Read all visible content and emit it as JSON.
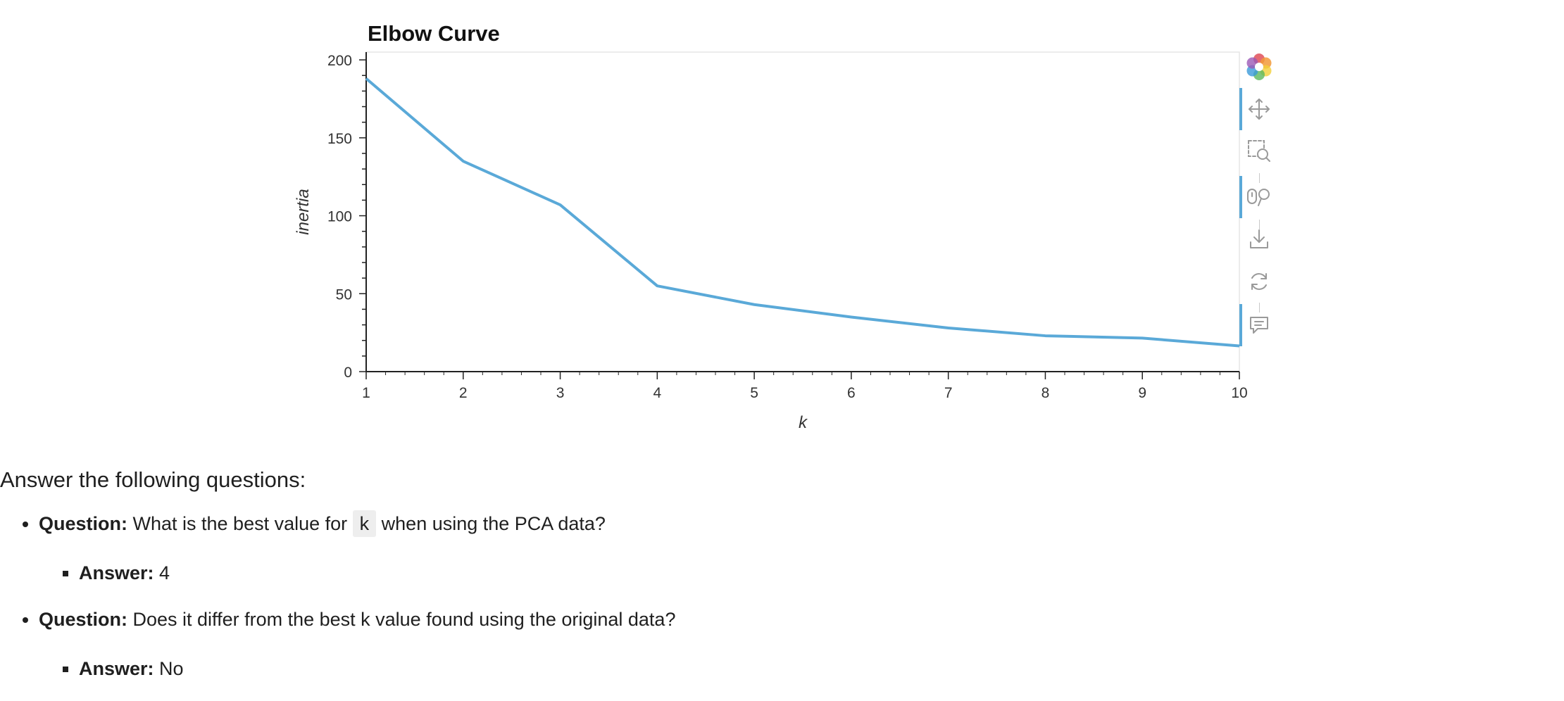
{
  "chart_data": {
    "type": "line",
    "title": "Elbow Curve",
    "xlabel": "k",
    "ylabel": "inertia",
    "x": [
      1,
      2,
      3,
      4,
      5,
      6,
      7,
      8,
      9,
      10
    ],
    "series": [
      {
        "values": [
          188,
          135,
          107,
          55,
          43,
          35,
          28,
          23,
          21.5,
          16.5
        ]
      }
    ],
    "xlim": [
      1,
      10
    ],
    "ylim": [
      0,
      205
    ],
    "xticks": [
      1,
      2,
      3,
      4,
      5,
      6,
      7,
      8,
      9,
      10
    ],
    "yticks": [
      0,
      50,
      100,
      150,
      200
    ],
    "grid": false,
    "line_color": "#5aa9d8"
  },
  "toolbar": {
    "items": [
      {
        "icon": "bokeh-logo-icon",
        "active": false
      },
      {
        "icon": "pan-icon",
        "active": true
      },
      {
        "icon": "box-zoom-icon",
        "active": false
      },
      {
        "icon": "wheel-zoom-icon",
        "active": true
      },
      {
        "icon": "save-icon",
        "active": false
      },
      {
        "icon": "reset-icon",
        "active": false
      },
      {
        "icon": "hover-icon",
        "active": true
      }
    ]
  },
  "doc": {
    "heading": "Answer the following questions:",
    "q1_label": "Question:",
    "q1_text_before": " What is the best value for ",
    "q1_code": "k",
    "q1_text_after": " when using the PCA data?",
    "a1_label": "Answer:",
    "a1_text": " 4",
    "q2_label": "Question:",
    "q2_text": " Does it differ from the best k value found using the original data?",
    "a2_label": "Answer:",
    "a2_text": " No"
  }
}
